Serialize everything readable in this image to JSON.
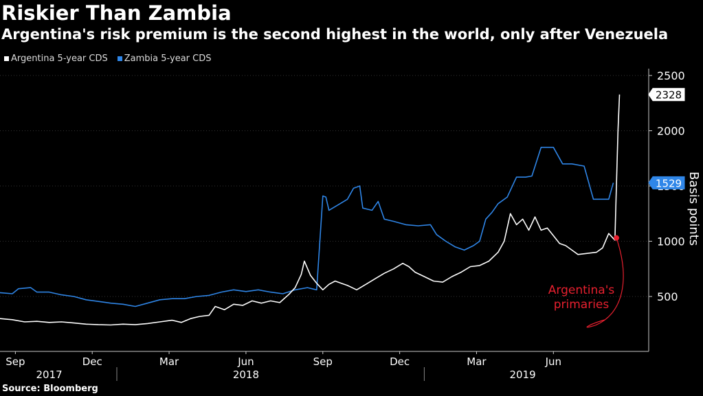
{
  "chart_data": {
    "type": "line",
    "title": "Riskier Than Zambia",
    "subtitle": "Argentina's risk premium is the second highest in the world, only after Venezuela",
    "ylabel": "Basis points",
    "ylim": [
      0,
      2500
    ],
    "yticks": [
      500,
      1000,
      1500,
      2000,
      2500
    ],
    "x_range": [
      2017.62,
      2019.73
    ],
    "x_ticks": [
      {
        "label": "Sep",
        "t": 2017.67
      },
      {
        "label": "Dec",
        "t": 2017.92
      },
      {
        "label": "Mar",
        "t": 2018.17
      },
      {
        "label": "Jun",
        "t": 2018.42
      },
      {
        "label": "Sep",
        "t": 2018.67
      },
      {
        "label": "Dec",
        "t": 2018.92
      },
      {
        "label": "Mar",
        "t": 2019.17
      },
      {
        "label": "Jun",
        "t": 2019.42
      }
    ],
    "year_labels": [
      {
        "label": "2017",
        "t": 2017.78
      },
      {
        "label": "2018",
        "t": 2018.42
      },
      {
        "label": "2019",
        "t": 2019.32
      }
    ],
    "year_separators": [
      2018.0,
      2019.0
    ],
    "series": [
      {
        "name": "Argentina 5-year CDS",
        "color": "#ffffff",
        "last_value": "2328",
        "points": [
          [
            2017.62,
            300
          ],
          [
            2017.66,
            290
          ],
          [
            2017.7,
            270
          ],
          [
            2017.74,
            275
          ],
          [
            2017.78,
            265
          ],
          [
            2017.82,
            270
          ],
          [
            2017.86,
            260
          ],
          [
            2017.9,
            250
          ],
          [
            2017.94,
            245
          ],
          [
            2017.98,
            242
          ],
          [
            2018.02,
            250
          ],
          [
            2018.06,
            245
          ],
          [
            2018.1,
            255
          ],
          [
            2018.14,
            270
          ],
          [
            2018.18,
            285
          ],
          [
            2018.21,
            265
          ],
          [
            2018.24,
            300
          ],
          [
            2018.27,
            320
          ],
          [
            2018.3,
            330
          ],
          [
            2018.32,
            410
          ],
          [
            2018.35,
            380
          ],
          [
            2018.38,
            430
          ],
          [
            2018.41,
            420
          ],
          [
            2018.44,
            460
          ],
          [
            2018.47,
            440
          ],
          [
            2018.5,
            460
          ],
          [
            2018.53,
            445
          ],
          [
            2018.56,
            520
          ],
          [
            2018.58,
            580
          ],
          [
            2018.6,
            700
          ],
          [
            2018.61,
            820
          ],
          [
            2018.63,
            690
          ],
          [
            2018.65,
            620
          ],
          [
            2018.67,
            560
          ],
          [
            2018.69,
            610
          ],
          [
            2018.71,
            640
          ],
          [
            2018.73,
            620
          ],
          [
            2018.75,
            600
          ],
          [
            2018.78,
            560
          ],
          [
            2018.81,
            610
          ],
          [
            2018.84,
            660
          ],
          [
            2018.87,
            710
          ],
          [
            2018.9,
            750
          ],
          [
            2018.93,
            800
          ],
          [
            2018.95,
            770
          ],
          [
            2018.97,
            720
          ],
          [
            2019.0,
            680
          ],
          [
            2019.03,
            640
          ],
          [
            2019.06,
            630
          ],
          [
            2019.09,
            680
          ],
          [
            2019.12,
            720
          ],
          [
            2019.15,
            770
          ],
          [
            2019.18,
            780
          ],
          [
            2019.21,
            820
          ],
          [
            2019.24,
            900
          ],
          [
            2019.26,
            1000
          ],
          [
            2019.28,
            1250
          ],
          [
            2019.3,
            1150
          ],
          [
            2019.32,
            1200
          ],
          [
            2019.34,
            1100
          ],
          [
            2019.36,
            1220
          ],
          [
            2019.38,
            1100
          ],
          [
            2019.4,
            1120
          ],
          [
            2019.42,
            1050
          ],
          [
            2019.44,
            980
          ],
          [
            2019.46,
            960
          ],
          [
            2019.48,
            920
          ],
          [
            2019.5,
            880
          ],
          [
            2019.53,
            890
          ],
          [
            2019.56,
            900
          ],
          [
            2019.58,
            940
          ],
          [
            2019.6,
            1070
          ],
          [
            2019.62,
            1010
          ],
          [
            2019.625,
            1500
          ],
          [
            2019.63,
            2000
          ],
          [
            2019.635,
            2328
          ]
        ]
      },
      {
        "name": "Zambia 5-year CDS",
        "color": "#2f86e8",
        "last_value": "1529",
        "points": [
          [
            2017.62,
            535
          ],
          [
            2017.66,
            525
          ],
          [
            2017.68,
            570
          ],
          [
            2017.72,
            580
          ],
          [
            2017.74,
            540
          ],
          [
            2017.78,
            540
          ],
          [
            2017.82,
            515
          ],
          [
            2017.86,
            500
          ],
          [
            2017.9,
            470
          ],
          [
            2017.94,
            455
          ],
          [
            2017.98,
            440
          ],
          [
            2018.02,
            430
          ],
          [
            2018.06,
            410
          ],
          [
            2018.1,
            440
          ],
          [
            2018.14,
            470
          ],
          [
            2018.18,
            480
          ],
          [
            2018.22,
            480
          ],
          [
            2018.26,
            500
          ],
          [
            2018.3,
            510
          ],
          [
            2018.34,
            540
          ],
          [
            2018.38,
            560
          ],
          [
            2018.42,
            545
          ],
          [
            2018.46,
            560
          ],
          [
            2018.5,
            540
          ],
          [
            2018.54,
            525
          ],
          [
            2018.58,
            560
          ],
          [
            2018.62,
            580
          ],
          [
            2018.65,
            560
          ],
          [
            2018.67,
            1410
          ],
          [
            2018.68,
            1400
          ],
          [
            2018.69,
            1280
          ],
          [
            2018.72,
            1330
          ],
          [
            2018.75,
            1380
          ],
          [
            2018.77,
            1480
          ],
          [
            2018.79,
            1500
          ],
          [
            2018.8,
            1300
          ],
          [
            2018.83,
            1280
          ],
          [
            2018.85,
            1360
          ],
          [
            2018.87,
            1200
          ],
          [
            2018.9,
            1180
          ],
          [
            2018.94,
            1150
          ],
          [
            2018.98,
            1140
          ],
          [
            2019.02,
            1150
          ],
          [
            2019.04,
            1060
          ],
          [
            2019.07,
            1000
          ],
          [
            2019.1,
            950
          ],
          [
            2019.13,
            920
          ],
          [
            2019.16,
            960
          ],
          [
            2019.18,
            1000
          ],
          [
            2019.2,
            1200
          ],
          [
            2019.22,
            1260
          ],
          [
            2019.24,
            1340
          ],
          [
            2019.27,
            1400
          ],
          [
            2019.3,
            1580
          ],
          [
            2019.33,
            1580
          ],
          [
            2019.35,
            1590
          ],
          [
            2019.38,
            1850
          ],
          [
            2019.42,
            1850
          ],
          [
            2019.45,
            1700
          ],
          [
            2019.48,
            1700
          ],
          [
            2019.52,
            1680
          ],
          [
            2019.55,
            1380
          ],
          [
            2019.6,
            1380
          ],
          [
            2019.615,
            1529
          ]
        ]
      }
    ],
    "annotation": {
      "lines": [
        "Argentina's",
        "primaries"
      ],
      "color": "#e8202f",
      "point": [
        2019.625,
        1030
      ]
    },
    "source": "Source: Bloomberg"
  }
}
